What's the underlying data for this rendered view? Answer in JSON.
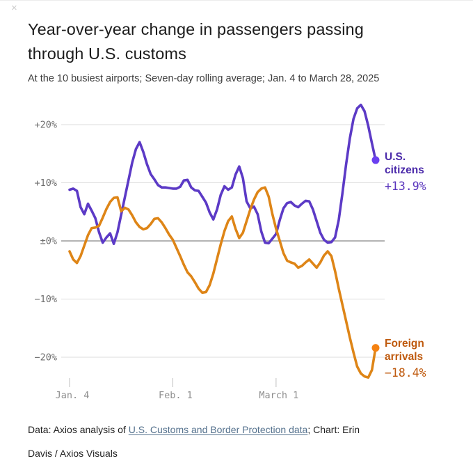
{
  "page": {
    "close_glyph": "×"
  },
  "header": {
    "title_line1": "Year-over-year change in passengers passing",
    "title_line2": "through U.S. customs",
    "subtitle": "At the 10 busiest airports; Seven-day rolling average; Jan. 4 to March 28, 2025"
  },
  "chart_data": {
    "type": "line",
    "title": "Year-over-year change in passengers passing through U.S. customs",
    "subtitle": "At the 10 busiest airports; Seven-day rolling average; Jan. 4 to March 28, 2025",
    "x_unit": "days since Jan. 4, 2025",
    "x_range_days": [
      0,
      83
    ],
    "x_axis": {
      "tick_labels": [
        "Jan. 4",
        "Feb. 1",
        "March 1"
      ],
      "tick_days": [
        0,
        28,
        56
      ]
    },
    "y_axis": {
      "unit": "%",
      "tick_labels": [
        "+20%",
        "+10%",
        "±0%",
        "−10%",
        "−20%"
      ],
      "tick_values": [
        20,
        10,
        0,
        -10,
        -20
      ],
      "ylim": [
        -24.5,
        24.5
      ],
      "grid": true
    },
    "legend_position": "end-of-line",
    "series": [
      {
        "name": "U.S. citizens",
        "color": "#5c3ac6",
        "dot_color": "#6a3ff0",
        "end_value": 13.9,
        "end_label": "+13.9%",
        "values": [
          8.8,
          9.0,
          8.6,
          5.8,
          4.6,
          6.4,
          5.2,
          3.9,
          1.5,
          -0.3,
          0.6,
          1.3,
          -0.5,
          1.5,
          4.5,
          7.5,
          10.5,
          13.5,
          15.8,
          17.0,
          15.3,
          13.2,
          11.5,
          10.6,
          9.6,
          9.2,
          9.2,
          9.1,
          9.0,
          9.0,
          9.3,
          10.4,
          10.5,
          9.2,
          8.7,
          8.6,
          7.6,
          6.6,
          4.9,
          3.7,
          5.4,
          7.9,
          9.4,
          8.8,
          9.2,
          11.4,
          12.8,
          10.8,
          6.8,
          5.6,
          5.9,
          4.6,
          1.6,
          -0.3,
          -0.4,
          0.4,
          1.2,
          3.6,
          5.6,
          6.5,
          6.7,
          6.1,
          5.8,
          6.4,
          6.9,
          6.8,
          5.4,
          3.4,
          1.4,
          0.2,
          -0.3,
          -0.2,
          0.6,
          3.6,
          8.2,
          13.2,
          17.6,
          21.0,
          22.8,
          23.4,
          22.3,
          19.8,
          16.8,
          13.9
        ]
      },
      {
        "name": "Foreign arrivals",
        "color": "#de8517",
        "dot_color": "#f58211",
        "end_value": -18.4,
        "end_label": "−18.4%",
        "values": [
          -1.8,
          -3.2,
          -3.8,
          -2.6,
          -0.8,
          1.0,
          2.2,
          2.3,
          2.6,
          4.0,
          5.5,
          6.7,
          7.4,
          7.5,
          5.1,
          5.7,
          5.4,
          4.4,
          3.2,
          2.4,
          2.0,
          2.2,
          2.9,
          3.8,
          3.9,
          3.2,
          2.2,
          1.1,
          0.2,
          -1.2,
          -2.6,
          -4.1,
          -5.4,
          -6.1,
          -7.1,
          -8.2,
          -8.9,
          -8.8,
          -7.6,
          -5.6,
          -3.1,
          -0.6,
          1.7,
          3.4,
          4.2,
          2.1,
          0.5,
          1.4,
          3.4,
          5.4,
          7.1,
          8.4,
          9.0,
          9.2,
          7.6,
          4.6,
          2.1,
          0.0,
          -2.1,
          -3.4,
          -3.7,
          -3.9,
          -4.6,
          -4.3,
          -3.7,
          -3.2,
          -3.9,
          -4.6,
          -3.7,
          -2.5,
          -1.8,
          -2.6,
          -5.2,
          -8.2,
          -11.0,
          -13.8,
          -16.6,
          -19.2,
          -21.6,
          -22.8,
          -23.3,
          -23.5,
          -22.2,
          -18.4
        ]
      }
    ]
  },
  "legend": {
    "citizens": {
      "name": "U.S.\ncitizens",
      "value": "+13.9%"
    },
    "foreign": {
      "name": "Foreign\narrivals",
      "value": "−18.4%"
    }
  },
  "footer": {
    "line1_prefix": "Data: Axios analysis of ",
    "link_text": "U.S. Customs and Border Protection data",
    "line1_suffix": "; Chart: Erin",
    "line2": "Davis / Axios Visuals"
  }
}
